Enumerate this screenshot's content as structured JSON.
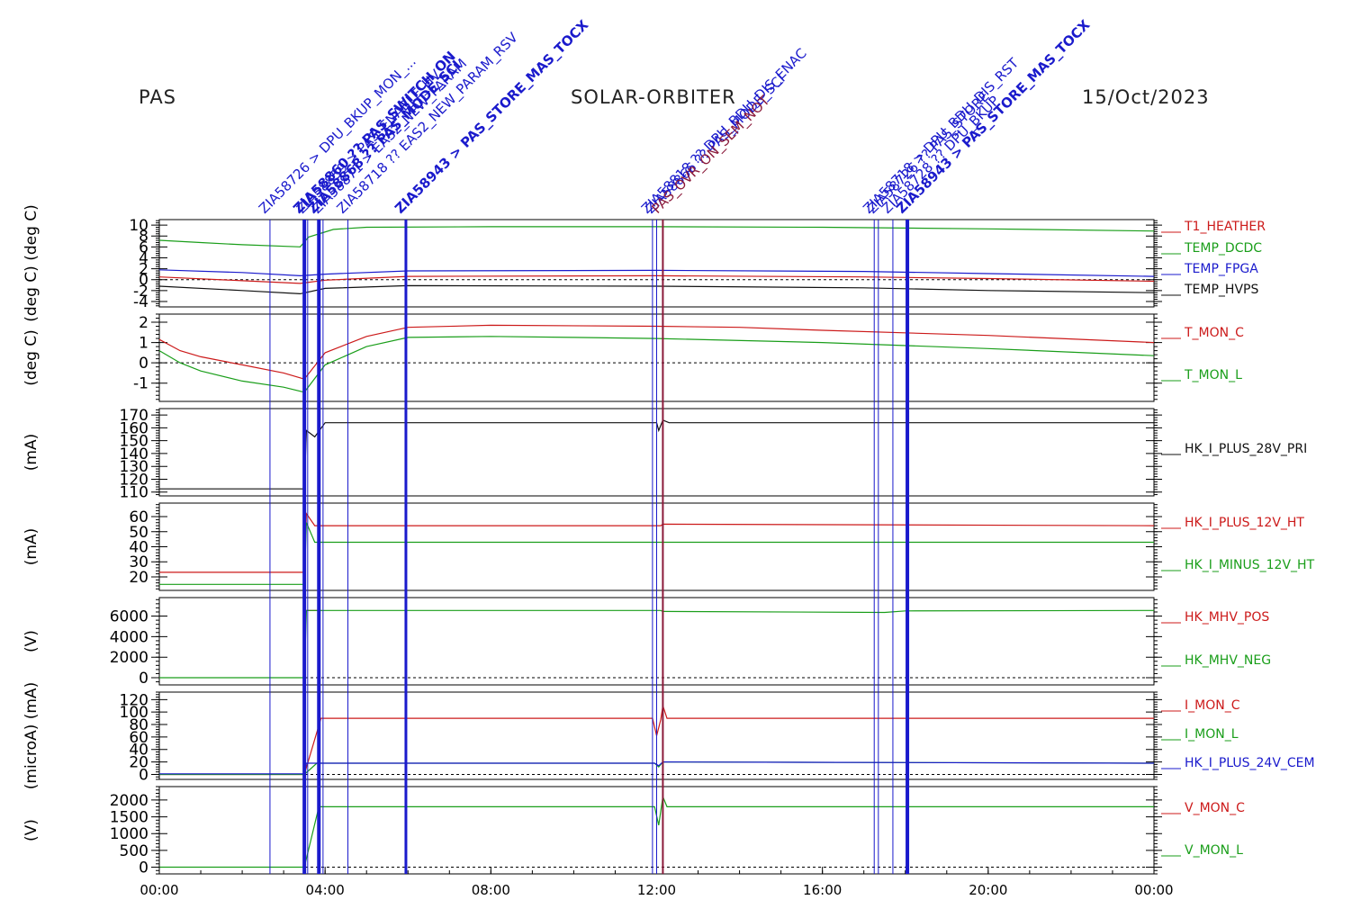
{
  "header": {
    "instrument": "PAS",
    "mission": "SOLAR-ORBITER",
    "date": "15/Oct/2023"
  },
  "chart_data": {
    "type": "line",
    "x_ticks": [
      "00:00",
      "04:00",
      "08:00",
      "12:00",
      "16:00",
      "20:00",
      "00:00"
    ],
    "x_range_hours": [
      0,
      24
    ],
    "events": [
      {
        "t": 2.67,
        "color": "#1a1acc",
        "w": 1,
        "label": "ZIA58726 > DPU_BKUP_MON_..."
      },
      {
        "t": 3.5,
        "color": "#1a1acc",
        "w": 4,
        "label": "ZIA58860 ?? PAS_SWITCH_ON"
      },
      {
        "t": 3.58,
        "color": "#1a1acc",
        "w": 1,
        "label": "ZIA58859 > PAS_ENABLE_HV"
      },
      {
        "t": 3.85,
        "color": "#1a1acc",
        "w": 4,
        "label": "ZIA58868 ?? PAS_MODE_SCI"
      },
      {
        "t": 3.95,
        "color": "#1a1acc",
        "w": 1,
        "label": "ZIA58871 > EAS2_NEW_PARAM"
      },
      {
        "t": 4.55,
        "color": "#1a1acc",
        "w": 1,
        "label": "ZIA58718 ?? EAS2_NEW_PARAM_RSV"
      },
      {
        "t": 5.95,
        "color": "#1a1acc",
        "w": 3,
        "label": "ZIA58943 > PAS_STORE_MAS_TOCX"
      },
      {
        "t": 11.9,
        "color": "#1a1acc",
        "w": 1,
        "label": "ZIA58818 ?? DPU_BDU_DIS_ENAC"
      },
      {
        "t": 12.0,
        "color": "#1a1acc",
        "w": 1,
        "label": "ZIA58866 ?? PAS_MODE_SCI"
      },
      {
        "t": 12.15,
        "color": "#8b1a3a",
        "w": 2,
        "label": "PAS_OVR_ON_SEM_NOT"
      },
      {
        "t": 17.25,
        "color": "#1a1acc",
        "w": 1,
        "label": "ZIA58718 > DPU_BDU_DIS_RST"
      },
      {
        "t": 17.35,
        "color": "#1a1acc",
        "w": 1,
        "label": "ZIA58726 ?? PAS_STORE"
      },
      {
        "t": 17.7,
        "color": "#1a1acc",
        "w": 1,
        "label": "ZIA58728 ?? DPU_BKUP"
      },
      {
        "t": 18.05,
        "color": "#1a1acc",
        "w": 4,
        "label": "ZIA58943 > PAS_STORE_MAS_TOCX"
      }
    ],
    "panels": [
      {
        "ylabel": "(deg C)  (deg C)",
        "yticks": [
          -4,
          -2,
          0,
          2,
          4,
          6,
          8,
          10
        ],
        "ytick_labels": [
          "-4",
          "-2",
          "0",
          "2",
          "4",
          "6",
          "8",
          "10"
        ],
        "ylim": [
          -5,
          11
        ],
        "zero_line": true,
        "series": [
          {
            "name": "T1_HEATHER",
            "color": "#cc1a1a",
            "points": [
              [
                0,
                0.5
              ],
              [
                2,
                -0.2
              ],
              [
                3.4,
                -0.7
              ],
              [
                4,
                -0.1
              ],
              [
                6,
                0.6
              ],
              [
                12,
                0.7
              ],
              [
                17,
                0.5
              ],
              [
                20,
                0.2
              ],
              [
                24,
                -0.3
              ]
            ]
          },
          {
            "name": "TEMP_DCDC",
            "color": "#1a9e1a",
            "points": [
              [
                0,
                7.2
              ],
              [
                1,
                6.8
              ],
              [
                2,
                6.4
              ],
              [
                3.4,
                6.0
              ],
              [
                3.6,
                7.8
              ],
              [
                4.2,
                9.2
              ],
              [
                5,
                9.6
              ],
              [
                8,
                9.7
              ],
              [
                12,
                9.7
              ],
              [
                16,
                9.6
              ],
              [
                20,
                9.3
              ],
              [
                24,
                8.9
              ]
            ]
          },
          {
            "name": "TEMP_FPGA",
            "color": "#1a1acc",
            "points": [
              [
                0,
                1.8
              ],
              [
                2,
                1.3
              ],
              [
                3.4,
                0.7
              ],
              [
                4,
                1.0
              ],
              [
                6,
                1.6
              ],
              [
                12,
                1.7
              ],
              [
                17,
                1.5
              ],
              [
                20,
                1.1
              ],
              [
                24,
                0.6
              ]
            ]
          },
          {
            "name": "TEMP_HVPS",
            "color": "#111111",
            "points": [
              [
                0,
                -1.2
              ],
              [
                2,
                -2.0
              ],
              [
                3.4,
                -2.6
              ],
              [
                4,
                -1.6
              ],
              [
                6,
                -1.1
              ],
              [
                12,
                -1.2
              ],
              [
                17,
                -1.5
              ],
              [
                20,
                -2.0
              ],
              [
                24,
                -2.4
              ]
            ]
          }
        ]
      },
      {
        "ylabel": "(deg C)",
        "yticks": [
          -1,
          0,
          1,
          2
        ],
        "ytick_labels": [
          "-1",
          "0",
          "1",
          "2"
        ],
        "ylim": [
          -1.9,
          2.4
        ],
        "zero_line": true,
        "series": [
          {
            "name": "T_MON_C",
            "color": "#cc1a1a",
            "points": [
              [
                0,
                1.15
              ],
              [
                0.5,
                0.6
              ],
              [
                1,
                0.3
              ],
              [
                2,
                -0.1
              ],
              [
                3,
                -0.5
              ],
              [
                3.5,
                -0.8
              ],
              [
                4,
                0.5
              ],
              [
                5,
                1.3
              ],
              [
                6,
                1.75
              ],
              [
                8,
                1.85
              ],
              [
                12,
                1.8
              ],
              [
                14,
                1.75
              ],
              [
                16,
                1.6
              ],
              [
                20,
                1.35
              ],
              [
                24,
                1.0
              ]
            ]
          },
          {
            "name": "T_MON_L",
            "color": "#1a9e1a",
            "points": [
              [
                0,
                0.6
              ],
              [
                0.5,
                0.0
              ],
              [
                1,
                -0.4
              ],
              [
                2,
                -0.9
              ],
              [
                3,
                -1.2
              ],
              [
                3.5,
                -1.45
              ],
              [
                4,
                -0.1
              ],
              [
                5,
                0.8
              ],
              [
                6,
                1.25
              ],
              [
                8,
                1.3
              ],
              [
                10,
                1.25
              ],
              [
                12,
                1.2
              ],
              [
                16,
                1.0
              ],
              [
                20,
                0.7
              ],
              [
                24,
                0.35
              ]
            ]
          }
        ]
      },
      {
        "ylabel": "(mA)",
        "yticks": [
          110,
          120,
          130,
          140,
          150,
          160,
          170
        ],
        "ytick_labels": [
          "110",
          "120",
          "130",
          "140",
          "150",
          "160",
          "170"
        ],
        "ylim": [
          107,
          175
        ],
        "zero_line": false,
        "series": [
          {
            "name": "HK_I_PLUS_28V_PRI",
            "color": "#111111",
            "points": [
              [
                0,
                112.5
              ],
              [
                3.5,
                112.5
              ],
              [
                3.55,
                158
              ],
              [
                3.75,
                153
              ],
              [
                4.0,
                164
              ],
              [
                12,
                164
              ],
              [
                12.05,
                158
              ],
              [
                12.15,
                166
              ],
              [
                12.3,
                164
              ],
              [
                24,
                164
              ]
            ]
          }
        ]
      },
      {
        "ylabel": "(mA)",
        "yticks": [
          20,
          30,
          40,
          50,
          60
        ],
        "ytick_labels": [
          "20",
          "30",
          "40",
          "50",
          "60"
        ],
        "ylim": [
          11,
          69
        ],
        "zero_line": false,
        "series": [
          {
            "name": "HK_I_PLUS_12V_HT",
            "color": "#cc1a1a",
            "points": [
              [
                0,
                23
              ],
              [
                3.5,
                23
              ],
              [
                3.55,
                62
              ],
              [
                3.75,
                54
              ],
              [
                4,
                54
              ],
              [
                12.1,
                54
              ],
              [
                12.15,
                55
              ],
              [
                24,
                54
              ]
            ]
          },
          {
            "name": "HK_I_MINUS_12V_HT",
            "color": "#1a9e1a",
            "points": [
              [
                0,
                15
              ],
              [
                3.5,
                15
              ],
              [
                3.55,
                56
              ],
              [
                3.75,
                43
              ],
              [
                4,
                43
              ],
              [
                24,
                43
              ]
            ]
          }
        ]
      },
      {
        "ylabel": "(V)",
        "yticks": [
          0,
          2000,
          4000,
          6000
        ],
        "ytick_labels": [
          "0",
          "2000",
          "4000",
          "6000"
        ],
        "ylim": [
          -700,
          7800
        ],
        "zero_line": true,
        "series": [
          {
            "name": "HK_MHV_POS",
            "color": "#cc1a1a",
            "points": [
              [
                3.55,
                6550
              ],
              [
                3.9,
                6550
              ]
            ]
          },
          {
            "name": "HK_MHV_NEG",
            "color": "#1a9e1a",
            "points": [
              [
                0,
                0
              ],
              [
                3.5,
                0
              ],
              [
                3.55,
                6550
              ],
              [
                12.1,
                6550
              ],
              [
                12.15,
                6450
              ],
              [
                17.5,
                6350
              ],
              [
                18,
                6500
              ],
              [
                24,
                6550
              ]
            ]
          }
        ]
      },
      {
        "ylabel": "(microA)  (mA)",
        "yticks": [
          0,
          20,
          40,
          60,
          80,
          100,
          120
        ],
        "ytick_labels": [
          "0",
          "20",
          "40",
          "60",
          "80",
          "100",
          "120"
        ],
        "ylim": [
          -8,
          132
        ],
        "zero_line": true,
        "series": [
          {
            "name": "I_MON_C",
            "color": "#cc1a1a",
            "points": [
              [
                0,
                0
              ],
              [
                3.5,
                0
              ],
              [
                3.9,
                90
              ],
              [
                4,
                90
              ],
              [
                11.9,
                90
              ],
              [
                12.0,
                62
              ],
              [
                12.1,
                88
              ],
              [
                12.15,
                110
              ],
              [
                12.25,
                90
              ],
              [
                24,
                90
              ]
            ]
          },
          {
            "name": "I_MON_L",
            "color": "#1a9e1a",
            "points": [
              [
                0,
                0
              ],
              [
                3.5,
                0
              ],
              [
                3.8,
                18
              ],
              [
                11.95,
                18
              ],
              [
                12.05,
                12
              ],
              [
                12.15,
                20
              ],
              [
                24,
                18
              ]
            ]
          },
          {
            "name": "HK_I_PLUS_24V_CEM",
            "color": "#1a1acc",
            "points": [
              [
                0,
                1
              ],
              [
                3.5,
                1
              ],
              [
                3.55,
                18
              ],
              [
                11.95,
                18
              ],
              [
                12.05,
                14
              ],
              [
                12.15,
                20
              ],
              [
                24,
                18
              ]
            ]
          }
        ]
      },
      {
        "ylabel": "(V)",
        "yticks": [
          0,
          500,
          1000,
          1500,
          2000
        ],
        "ytick_labels": [
          "0",
          "500",
          "1000",
          "1500",
          "2000"
        ],
        "ylim": [
          -200,
          2400
        ],
        "zero_line": true,
        "series": [
          {
            "name": "V_MON_C",
            "color": "#cc1a1a",
            "points": []
          },
          {
            "name": "V_MON_L",
            "color": "#1a9e1a",
            "points": [
              [
                0,
                0
              ],
              [
                3.5,
                0
              ],
              [
                3.85,
                1800
              ],
              [
                11.95,
                1800
              ],
              [
                12.05,
                1250
              ],
              [
                12.15,
                2100
              ],
              [
                12.25,
                1800
              ],
              [
                24,
                1800
              ]
            ]
          }
        ]
      }
    ]
  }
}
